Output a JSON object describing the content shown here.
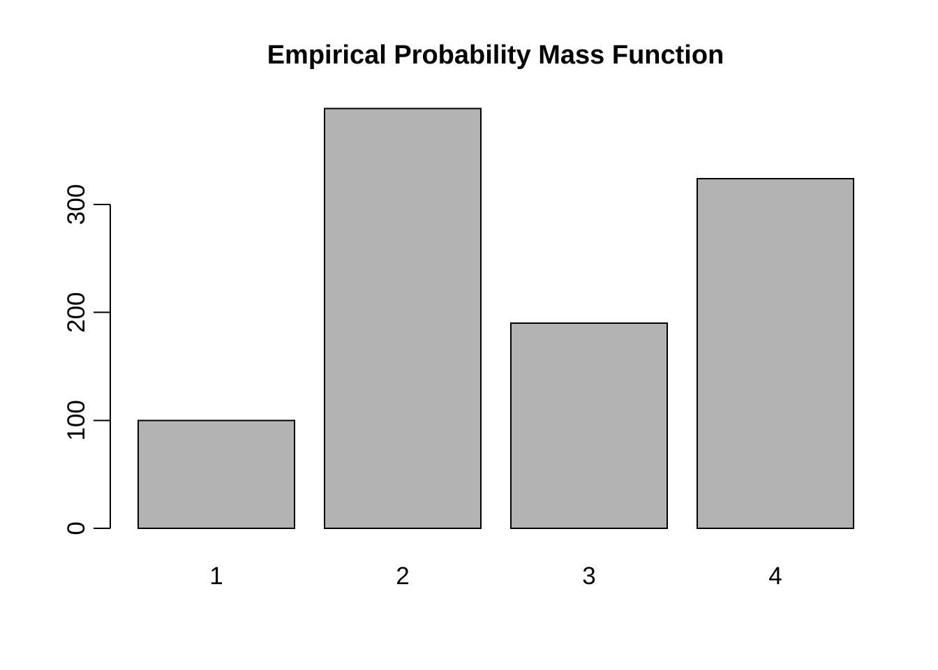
{
  "chart_data": {
    "type": "bar",
    "title": "Empirical Probability Mass Function",
    "categories": [
      "1",
      "2",
      "3",
      "4"
    ],
    "values": [
      100,
      389,
      190,
      324
    ],
    "xlabel": "",
    "ylabel": "",
    "ylim": [
      0,
      300
    ],
    "yticks": [
      0,
      100,
      200,
      300
    ],
    "grid": false,
    "legend": "none",
    "bar_fill": "#b3b3b3",
    "bar_border": "#000000",
    "axis_color": "#000000",
    "background": "#ffffff"
  }
}
